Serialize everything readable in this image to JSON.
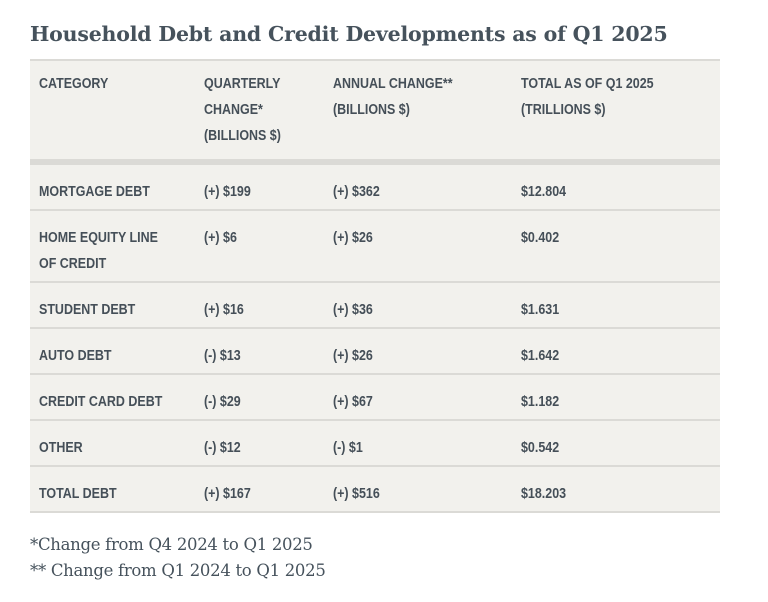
{
  "title": "Household Debt and Credit Developments as of Q1 2025",
  "table": {
    "headers": [
      [
        "CATEGORY"
      ],
      [
        "QUARTERLY",
        "CHANGE*",
        "(BILLIONS $)"
      ],
      [
        "ANNUAL CHANGE**",
        "(BILLIONS $)"
      ],
      [
        "TOTAL AS OF Q1 2025",
        "(TRILLIONS $)"
      ]
    ],
    "rows": [
      {
        "category": [
          "MORTGAGE DEBT"
        ],
        "quarterly": "(+) $199",
        "annual": "(+) $362",
        "total": "$12.804"
      },
      {
        "category": [
          "HOME EQUITY LINE",
          "OF CREDIT"
        ],
        "quarterly": "(+) $6",
        "annual": "(+) $26",
        "total": "$0.402"
      },
      {
        "category": [
          "STUDENT DEBT"
        ],
        "quarterly": "(+) $16",
        "annual": "(+) $36",
        "total": "$1.631"
      },
      {
        "category": [
          "AUTO DEBT"
        ],
        "quarterly": "(-) $13",
        "annual": "(+) $26",
        "total": "$1.642"
      },
      {
        "category": [
          "CREDIT CARD DEBT"
        ],
        "quarterly": "(-) $29",
        "annual": "(+) $67",
        "total": "$1.182"
      },
      {
        "category": [
          "OTHER"
        ],
        "quarterly": "(-) $12",
        "annual": "(-) $1",
        "total": "$0.542"
      },
      {
        "category": [
          "TOTAL DEBT"
        ],
        "quarterly": "(+) $167",
        "annual": "(+) $516",
        "total": "$18.203"
      }
    ]
  },
  "footnotes": [
    "*Change from Q4 2024 to Q1 2025",
    "** Change from Q1 2024 to Q1 2025"
  ]
}
